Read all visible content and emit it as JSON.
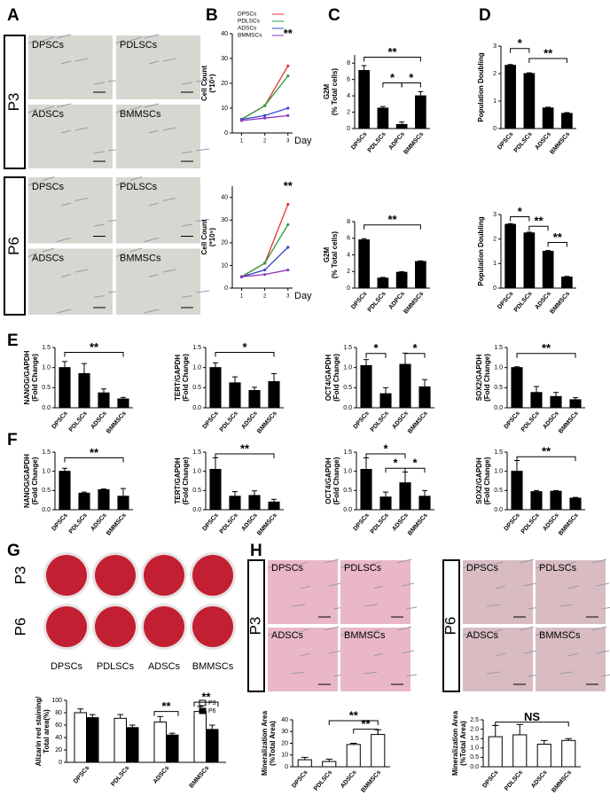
{
  "panel_labels": [
    "A",
    "B",
    "C",
    "D",
    "E",
    "F",
    "G",
    "H"
  ],
  "panel_a": {
    "passages": [
      "P3",
      "P6"
    ],
    "cells": [
      "DPSCs",
      "PDLSCs",
      "ADSCs",
      "BMMSCs"
    ]
  },
  "panel_g": {
    "passages": [
      "P3",
      "P6"
    ],
    "cells": [
      "DPSCs",
      "PDLSCs",
      "ADSCs",
      "BMMSCs"
    ]
  },
  "panel_h": {
    "passages": [
      "P3",
      "P6"
    ],
    "cells": [
      "DPSCs",
      "PDLSCs",
      "ADSCs",
      "BMMSCs"
    ]
  },
  "chart_data": [
    {
      "type": "line",
      "ylabel": [
        "Cell Count",
        "(*10⁵)"
      ],
      "xlabel": "Day",
      "x": [
        1,
        2,
        3
      ],
      "xlim": [
        0.6,
        3.2
      ],
      "xticks": [
        1,
        2,
        3
      ],
      "ylim": [
        0,
        40
      ],
      "yticks": [
        0,
        10,
        20,
        30,
        40
      ],
      "legend": "upper left",
      "annotations": [
        "**"
      ],
      "series": [
        {
          "name": "DPSCs",
          "color": "#e8322d",
          "values": [
            5.5,
            11,
            27
          ]
        },
        {
          "name": "PDLSCs",
          "color": "#2e9a3e",
          "values": [
            5.5,
            11,
            23
          ]
        },
        {
          "name": "ADSCs",
          "color": "#3a48c8",
          "values": [
            5.5,
            7,
            10
          ]
        },
        {
          "name": "BMMSCs",
          "color": "#8a35c0",
          "values": [
            5,
            6,
            7
          ]
        }
      ]
    },
    {
      "type": "line",
      "ylabel": [
        "Cell Count",
        "(*10⁵)"
      ],
      "xlabel": "Day",
      "x": [
        1,
        2,
        3
      ],
      "xlim": [
        0.6,
        3.2
      ],
      "xticks": [
        1,
        2,
        3
      ],
      "ylim": [
        0,
        45
      ],
      "yticks": [
        0,
        10,
        20,
        30,
        40
      ],
      "annotations": [
        "**"
      ],
      "series": [
        {
          "color": "#e8322d",
          "values": [
            5,
            11,
            37
          ]
        },
        {
          "color": "#2e9a3e",
          "values": [
            5,
            11,
            28
          ]
        },
        {
          "color": "#3a48c8",
          "values": [
            5,
            8,
            18
          ]
        },
        {
          "color": "#8a35c0",
          "values": [
            5,
            6,
            8
          ]
        }
      ]
    },
    {
      "type": "bar",
      "ylabel": [
        "G2M",
        "(% Total cells)"
      ],
      "categories": [
        "DPSCs",
        "PDLSCs",
        "ADPCs",
        "BMMSCs"
      ],
      "values": [
        7.1,
        2.5,
        0.5,
        4.0
      ],
      "errors": [
        0.6,
        0.2,
        0.3,
        0.5
      ],
      "color": "#000000",
      "ylim": [
        0,
        9
      ],
      "yticks": [
        0,
        2,
        4,
        6,
        8
      ],
      "annotations": [
        "**",
        "*",
        "*"
      ]
    },
    {
      "type": "bar",
      "ylabel": [
        "G2M",
        "(% Total cells)"
      ],
      "categories": [
        "DPSCs",
        "PDLSCs",
        "ADPCs",
        "BMMSCs"
      ],
      "values": [
        5.8,
        1.2,
        1.9,
        3.2
      ],
      "errors": [
        0.15,
        0.1,
        0.08,
        0.08
      ],
      "color": "#000000",
      "ylim": [
        0,
        8
      ],
      "yticks": [
        0,
        2,
        4,
        6,
        8
      ],
      "annotations": [
        "**"
      ]
    },
    {
      "type": "bar",
      "ylabel": [
        "Population Doubling"
      ],
      "categories": [
        "DPSCs",
        "PDLSCs",
        "ADSCs",
        "BMMSCs"
      ],
      "values": [
        2.3,
        2.0,
        0.75,
        0.55
      ],
      "errors": [
        0.03,
        0.03,
        0.03,
        0.03
      ],
      "color": "#000000",
      "ylim": [
        0,
        3
      ],
      "yticks": [
        0,
        1,
        2,
        3
      ],
      "annotations": [
        "*",
        "**"
      ]
    },
    {
      "type": "bar",
      "ylabel": [
        "Population Doubling"
      ],
      "categories": [
        "DPSCs",
        "PDLSCs",
        "ADSCs",
        "BMMSCs"
      ],
      "values": [
        2.6,
        2.25,
        1.5,
        0.45
      ],
      "errors": [
        0.03,
        0.03,
        0.03,
        0.03
      ],
      "color": "#000000",
      "ylim": [
        0,
        3
      ],
      "yticks": [
        0,
        1,
        2,
        3
      ],
      "annotations": [
        "*",
        "**",
        "**"
      ]
    },
    {
      "type": "bar",
      "ylabel": [
        "NANOG/GAPDH",
        "(Fold Change)"
      ],
      "categories": [
        "DPSCs",
        "PDLSCs",
        "ADSCs",
        "BMMSCs"
      ],
      "values": [
        1.0,
        0.85,
        0.37,
        0.22
      ],
      "errors": [
        0.15,
        0.25,
        0.1,
        0.04
      ],
      "color": "#000000",
      "ylim": [
        0,
        1.5
      ],
      "yticks": [
        {
          "value": 0,
          "label": "0.0"
        },
        0.5,
        {
          "value": 1,
          "label": "1.0"
        },
        1.5
      ],
      "annotations": [
        "**"
      ]
    },
    {
      "type": "bar",
      "ylabel": [
        "TERT/GAPDH",
        "(Fold Change)"
      ],
      "categories": [
        "DPSCs",
        "PDLSCs",
        "ADSCs",
        "BMMSCs"
      ],
      "values": [
        1.0,
        0.62,
        0.43,
        0.65
      ],
      "errors": [
        0.12,
        0.15,
        0.08,
        0.2
      ],
      "color": "#000000",
      "ylim": [
        0,
        1.5
      ],
      "yticks": [
        {
          "value": 0,
          "label": "0.0"
        },
        0.5,
        {
          "value": 1,
          "label": "1.0"
        },
        1.5
      ],
      "annotations": [
        "*"
      ]
    },
    {
      "type": "bar",
      "ylabel": [
        "OCT4/GAPDH",
        "(Fold Change)"
      ],
      "categories": [
        "DPSCs",
        "PDLSCs",
        "ADSCs",
        "BMMSCs"
      ],
      "values": [
        1.05,
        0.35,
        1.08,
        0.52
      ],
      "errors": [
        0.15,
        0.15,
        0.28,
        0.18
      ],
      "color": "#000000",
      "ylim": [
        0,
        1.5
      ],
      "yticks": [
        {
          "value": 0,
          "label": "0.0"
        },
        0.5,
        {
          "value": 1,
          "label": "1.0"
        },
        1.5
      ],
      "annotations": [
        "*",
        "*"
      ]
    },
    {
      "type": "bar",
      "ylabel": [
        "SOX2/GAPDH",
        "(Fold Change)"
      ],
      "categories": [
        "DPSCs",
        "PDLSCs",
        "ADSCs",
        "BMMSCs"
      ],
      "values": [
        1.0,
        0.38,
        0.28,
        0.2
      ],
      "errors": [
        0.02,
        0.15,
        0.1,
        0.05
      ],
      "color": "#000000",
      "ylim": [
        0,
        1.5
      ],
      "yticks": [
        {
          "value": 0,
          "label": "0.0"
        },
        0.5,
        {
          "value": 1,
          "label": "1.0"
        },
        1.5
      ],
      "annotations": [
        "**"
      ]
    },
    {
      "type": "bar",
      "ylabel": [
        "NANOG/GAPDH",
        "(Fold Change)"
      ],
      "categories": [
        "DPSCs",
        "PDLSCs",
        "ADSCs",
        "BMMSCs"
      ],
      "values": [
        1.0,
        0.43,
        0.52,
        0.35
      ],
      "errors": [
        0.08,
        0.03,
        0.02,
        0.2
      ],
      "color": "#000000",
      "ylim": [
        0,
        1.5
      ],
      "yticks": [
        {
          "value": 0,
          "label": "0.0"
        },
        0.5,
        {
          "value": 1,
          "label": "1.0"
        },
        1.5
      ],
      "annotations": [
        "**"
      ]
    },
    {
      "type": "bar",
      "ylabel": [
        "TERT/GAPDH",
        "(Fold Change)"
      ],
      "categories": [
        "DPSCs",
        "PDLSCs",
        "ADSCs",
        "BMMSCs"
      ],
      "values": [
        1.05,
        0.35,
        0.37,
        0.2
      ],
      "errors": [
        0.3,
        0.12,
        0.12,
        0.07
      ],
      "color": "#000000",
      "ylim": [
        0,
        1.5
      ],
      "yticks": [
        {
          "value": 0,
          "label": "0.0"
        },
        0.5,
        {
          "value": 1,
          "label": "1.0"
        },
        1.5
      ],
      "annotations": [
        "**"
      ]
    },
    {
      "type": "bar",
      "ylabel": [
        "OCT4/GAPDH",
        "(Fold Change)"
      ],
      "categories": [
        "DPSCs",
        "PDLSCs",
        "ADSCs",
        "BMMSCs"
      ],
      "values": [
        1.05,
        0.33,
        0.7,
        0.35
      ],
      "errors": [
        0.3,
        0.13,
        0.28,
        0.15
      ],
      "color": "#000000",
      "ylim": [
        0,
        1.5
      ],
      "yticks": [
        {
          "value": 0,
          "label": "0.0"
        },
        0.5,
        {
          "value": 1,
          "label": "1.0"
        },
        1.5
      ],
      "annotations": [
        "*",
        "*",
        "*"
      ]
    },
    {
      "type": "bar",
      "ylabel": [
        "SOX2/GAPDH",
        "(Fold Change)"
      ],
      "categories": [
        "DPSCs",
        "PDLSCs",
        "ADSCs",
        "BMMSCs"
      ],
      "values": [
        1.0,
        0.47,
        0.48,
        0.3
      ],
      "errors": [
        0.28,
        0.03,
        0.02,
        0.02
      ],
      "color": "#000000",
      "ylim": [
        0,
        1.5
      ],
      "yticks": [
        {
          "value": 0,
          "label": "0.0"
        },
        0.5,
        {
          "value": 1,
          "label": "1.0"
        },
        1.5
      ],
      "annotations": [
        "**"
      ]
    },
    {
      "type": "bar",
      "ylabel": [
        "Alizarin red staining/",
        "Total area(%)"
      ],
      "categories": [
        "DPSCs",
        "PDLSCs",
        "ADSCs",
        "BMMSCs"
      ],
      "ylim": [
        0,
        100
      ],
      "yticks": [
        0,
        20,
        40,
        60,
        80,
        100
      ],
      "legend": "upper right",
      "annotations": [
        "**",
        "**"
      ],
      "series": [
        {
          "name": "P3",
          "color": "#ffffff",
          "values": [
            80,
            71,
            65,
            82
          ],
          "errors": [
            6,
            6,
            9,
            8
          ]
        },
        {
          "name": "P6",
          "color": "#000000",
          "values": [
            72,
            56,
            44,
            53
          ],
          "errors": [
            5,
            4,
            3,
            7
          ]
        }
      ]
    },
    {
      "type": "bar",
      "ylabel": [
        "Mineralization Area",
        "(%Total Area)"
      ],
      "categories": [
        "DPSCs",
        "PDLSCs",
        "ADSCs",
        "BMMSCs"
      ],
      "values": [
        6,
        4.5,
        19,
        27.5
      ],
      "errors": [
        2,
        2,
        1,
        4
      ],
      "color": "#ffffff",
      "ylim": [
        0,
        40
      ],
      "yticks": [
        0,
        10,
        20,
        30,
        40
      ],
      "annotations": [
        "**",
        "**"
      ]
    },
    {
      "type": "bar",
      "ylabel": [
        "Mineralization Area",
        "(%Total Area)"
      ],
      "categories": [
        "DPSCs",
        "PDLSCs",
        "ADSCs",
        "BMMSCs"
      ],
      "values": [
        1.6,
        1.7,
        1.2,
        1.4
      ],
      "errors": [
        0.6,
        0.55,
        0.2,
        0.1
      ],
      "color": "#ffffff",
      "ylim": [
        0,
        2.5
      ],
      "yticks": [
        {
          "value": 0,
          "label": "0.0"
        },
        0.5,
        {
          "value": 1,
          "label": "1.0"
        },
        1.5,
        {
          "value": 2,
          "label": "2.0"
        },
        2.5
      ],
      "annotations": [
        "NS"
      ]
    }
  ]
}
